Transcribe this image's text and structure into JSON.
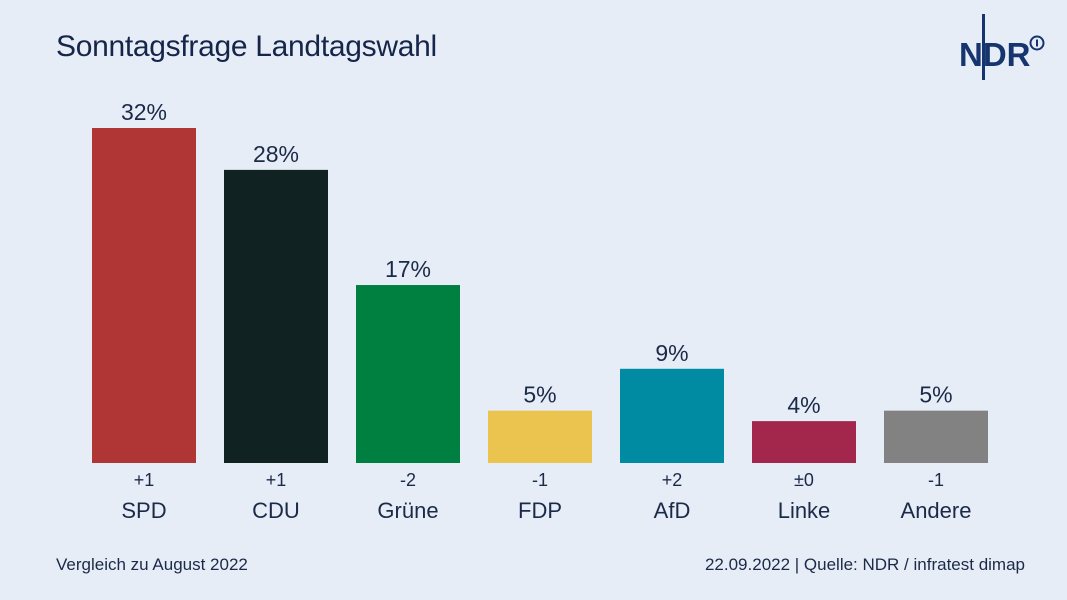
{
  "header": {
    "title": "Sonntagsfrage Landtagswahl",
    "logo_text": "NDR"
  },
  "footer": {
    "comparison_note": "Vergleich zu August 2022",
    "source_line": "22.09.2022 | Quelle: NDR / infratest dimap"
  },
  "colors": {
    "background": "#e6edf6",
    "text": "#1b2a49"
  },
  "chart_data": {
    "type": "bar",
    "title": "Sonntagsfrage Landtagswahl",
    "categories": [
      "SPD",
      "CDU",
      "Grüne",
      "FDP",
      "AfD",
      "Linke",
      "Andere"
    ],
    "values": [
      32,
      28,
      17,
      5,
      9,
      4,
      5
    ],
    "value_labels": [
      "32%",
      "28%",
      "17%",
      "5%",
      "9%",
      "4%",
      "5%"
    ],
    "changes": [
      "+1",
      "+1",
      "-2",
      "-1",
      "+2",
      "±0",
      "-1"
    ],
    "colors": [
      "#b03636",
      "#112222",
      "#008040",
      "#eac44e",
      "#008ba3",
      "#a3274d",
      "#828282"
    ],
    "ylim": [
      0,
      32
    ],
    "grid": false,
    "legend": "none"
  }
}
